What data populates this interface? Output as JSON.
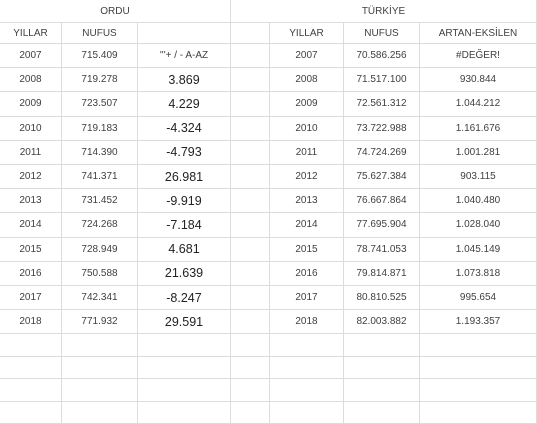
{
  "header": {
    "left_title": "ORDU",
    "right_title": "TÜRKİYE"
  },
  "columns": {
    "left": [
      "YILLAR",
      "NUFUS",
      ""
    ],
    "right": [
      "YILLAR",
      "NUFUS",
      "ARTAN-EKSİLEN"
    ]
  },
  "table": {
    "rows": [
      [
        "2007",
        "715.409",
        "'''+ / -  A-AZ",
        "2007",
        "70.586.256",
        "#DEĞER!"
      ],
      [
        "2008",
        "719.278",
        "3.869",
        "2008",
        "71.517.100",
        "930.844"
      ],
      [
        "2009",
        "723.507",
        "4.229",
        "2009",
        "72.561.312",
        "1.044.212"
      ],
      [
        "2010",
        "719.183",
        "-4.324",
        "2010",
        "73.722.988",
        "1.161.676"
      ],
      [
        "2011",
        "714.390",
        "-4.793",
        "2011",
        "74.724.269",
        "1.001.281"
      ],
      [
        "2012",
        "741.371",
        "26.981",
        "2012",
        "75.627.384",
        "903.115"
      ],
      [
        "2013",
        "731.452",
        "-9.919",
        "2013",
        "76.667.864",
        "1.040.480"
      ],
      [
        "2014",
        "724.268",
        "-7.184",
        "2014",
        "77.695.904",
        "1.028.040"
      ],
      [
        "2015",
        "728.949",
        "4.681",
        "2015",
        "78.741.053",
        "1.045.149"
      ],
      [
        "2016",
        "750.588",
        "21.639",
        "2016",
        "79.814.871",
        "1.073.818"
      ],
      [
        "2017",
        "742.341",
        "-8.247",
        "2017",
        "80.810.525",
        "995.654"
      ],
      [
        "2018",
        "771.932",
        "29.591",
        "2018",
        "82.003.882",
        "1.193.357"
      ]
    ]
  }
}
